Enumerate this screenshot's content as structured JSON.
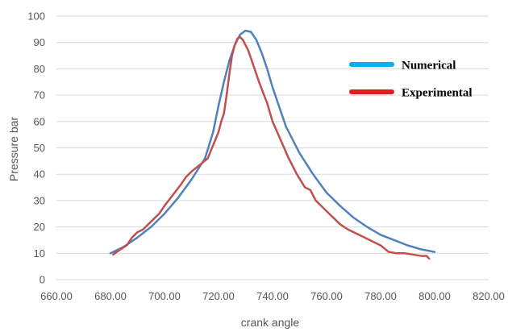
{
  "chart_data": {
    "type": "line",
    "title": "",
    "xlabel": "crank angle",
    "ylabel": "Pressure bar",
    "xlim": [
      660,
      820
    ],
    "ylim": [
      0,
      100
    ],
    "x_ticks": [
      "660.00",
      "680.00",
      "700.00",
      "720.00",
      "740.00",
      "760.00",
      "780.00",
      "800.00",
      "820.00"
    ],
    "y_ticks": [
      "0",
      "10",
      "20",
      "30",
      "40",
      "50",
      "60",
      "70",
      "80",
      "90",
      "100"
    ],
    "grid": "horizontal",
    "legend_position": "right",
    "series": [
      {
        "name": "Numerical",
        "color": "#4f81bd",
        "legend_color": "#00b0f0",
        "points": [
          [
            680,
            10
          ],
          [
            685,
            12.5
          ],
          [
            690,
            16
          ],
          [
            695,
            20
          ],
          [
            700,
            25
          ],
          [
            705,
            31
          ],
          [
            710,
            38
          ],
          [
            715,
            46
          ],
          [
            718,
            56
          ],
          [
            720,
            66
          ],
          [
            722,
            75
          ],
          [
            724,
            83
          ],
          [
            726,
            89
          ],
          [
            728,
            93
          ],
          [
            730,
            94.5
          ],
          [
            732,
            94
          ],
          [
            734,
            91
          ],
          [
            736,
            86
          ],
          [
            738,
            80
          ],
          [
            740,
            73
          ],
          [
            745,
            58
          ],
          [
            750,
            48
          ],
          [
            755,
            40
          ],
          [
            760,
            33
          ],
          [
            765,
            28
          ],
          [
            770,
            23.5
          ],
          [
            775,
            20
          ],
          [
            780,
            17
          ],
          [
            785,
            15
          ],
          [
            790,
            13
          ],
          [
            795,
            11.5
          ],
          [
            800,
            10.5
          ]
        ]
      },
      {
        "name": "Experimental",
        "color": "#c0504d",
        "legend_color": "#e02020",
        "points": [
          [
            681,
            9.5
          ],
          [
            683,
            11
          ],
          [
            686,
            13
          ],
          [
            688,
            16
          ],
          [
            690,
            18
          ],
          [
            692,
            19
          ],
          [
            695,
            22
          ],
          [
            698,
            25
          ],
          [
            700,
            28
          ],
          [
            703,
            32
          ],
          [
            706,
            36
          ],
          [
            708,
            39
          ],
          [
            710,
            41
          ],
          [
            713,
            43.5
          ],
          [
            716,
            46
          ],
          [
            718,
            51
          ],
          [
            720,
            56
          ],
          [
            721,
            60
          ],
          [
            722,
            63
          ],
          [
            723,
            70
          ],
          [
            724,
            78
          ],
          [
            725,
            85
          ],
          [
            726,
            89
          ],
          [
            727,
            91.5
          ],
          [
            728,
            92
          ],
          [
            729,
            91
          ],
          [
            731,
            87
          ],
          [
            733,
            81
          ],
          [
            735,
            75
          ],
          [
            738,
            67
          ],
          [
            740,
            60
          ],
          [
            743,
            53
          ],
          [
            746,
            46
          ],
          [
            749,
            40
          ],
          [
            752,
            35
          ],
          [
            754,
            34
          ],
          [
            756,
            30
          ],
          [
            759,
            27
          ],
          [
            762,
            24
          ],
          [
            765,
            21
          ],
          [
            768,
            19
          ],
          [
            771,
            17.5
          ],
          [
            774,
            16
          ],
          [
            777,
            14.5
          ],
          [
            780,
            13
          ],
          [
            783,
            10.5
          ],
          [
            786,
            10
          ],
          [
            789,
            10
          ],
          [
            792,
            9.5
          ],
          [
            795,
            9
          ],
          [
            797,
            9
          ],
          [
            798,
            8
          ]
        ]
      }
    ]
  }
}
